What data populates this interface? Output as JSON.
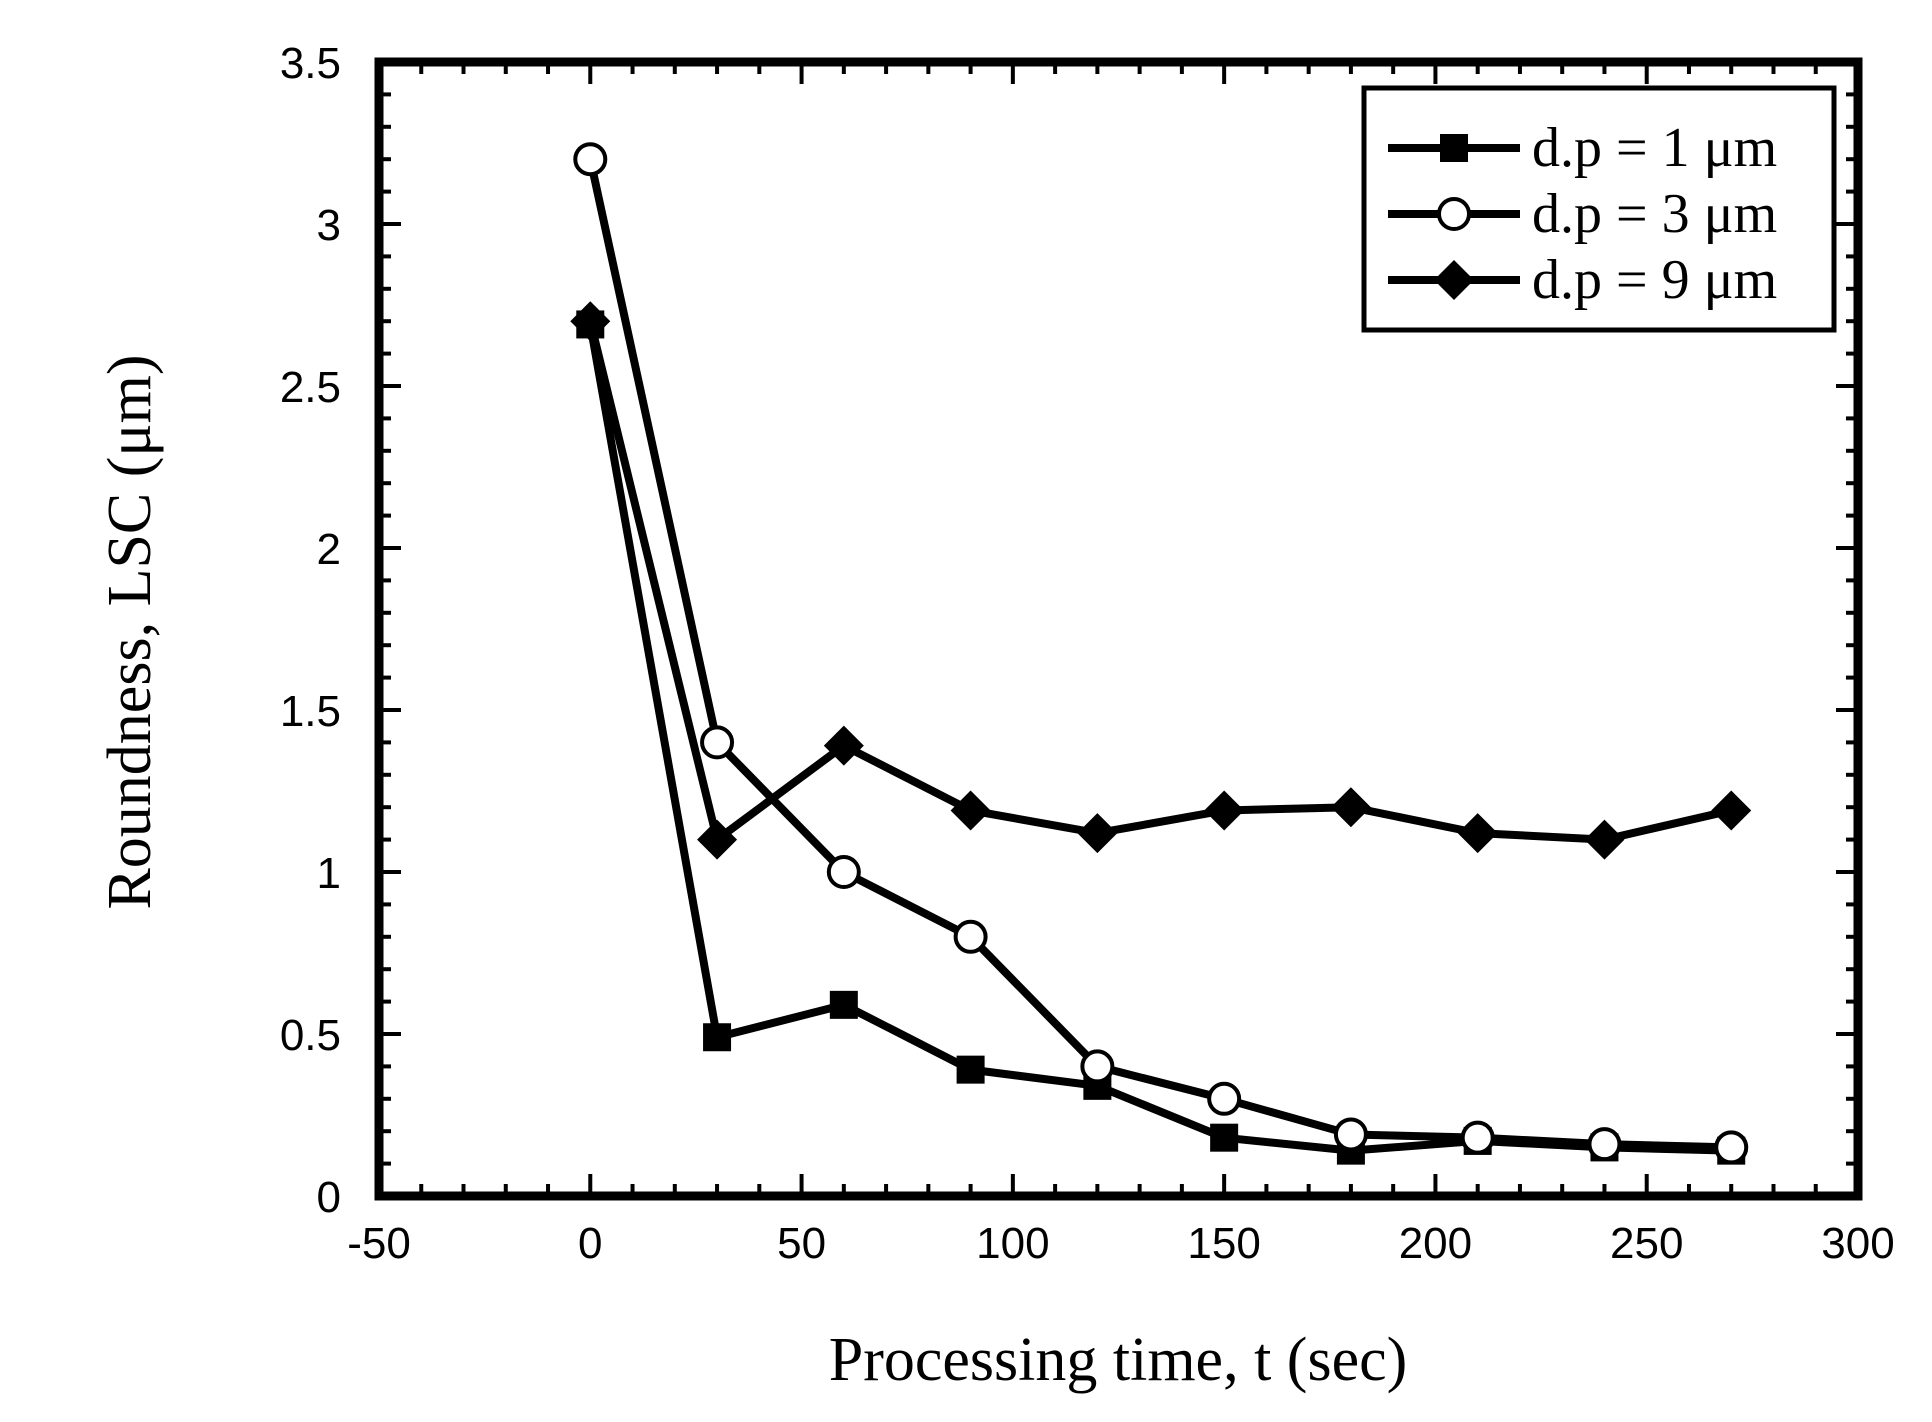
{
  "chart_data": {
    "type": "line",
    "title": "",
    "xlabel": "Processing time, t (sec)",
    "ylabel": "Roundness, LSC (μm)",
    "xlim": [
      -50,
      300
    ],
    "ylim": [
      0,
      3.5
    ],
    "x_ticks": [
      -50,
      0,
      50,
      100,
      150,
      200,
      250,
      300
    ],
    "x_tick_labels": [
      "-50",
      "0",
      "50",
      "100",
      "150",
      "200",
      "250",
      "300"
    ],
    "y_ticks": [
      0,
      0.5,
      1,
      1.5,
      2,
      2.5,
      3,
      3.5
    ],
    "y_tick_labels": [
      "0",
      "0.5",
      "1",
      "1.5",
      "2",
      "2.5",
      "3",
      "3.5"
    ],
    "grid": false,
    "legend_position": "top-right",
    "x": [
      0,
      30,
      60,
      90,
      120,
      150,
      180,
      210,
      240,
      270
    ],
    "series": [
      {
        "name": "d.p = 1 μm",
        "marker": "square-filled",
        "values": [
          2.69,
          0.49,
          0.59,
          0.39,
          0.34,
          0.18,
          0.14,
          0.17,
          0.15,
          0.14
        ]
      },
      {
        "name": "d.p = 3 μm",
        "marker": "circle-open",
        "values": [
          3.2,
          1.4,
          1.0,
          0.8,
          0.4,
          0.3,
          0.19,
          0.18,
          0.16,
          0.15
        ]
      },
      {
        "name": "d.p = 9 μm",
        "marker": "diamond-filled",
        "values": [
          2.7,
          1.1,
          1.39,
          1.19,
          1.12,
          1.19,
          1.2,
          1.12,
          1.1,
          1.19
        ]
      }
    ],
    "colors": {
      "line": "#000000",
      "background": "#ffffff"
    }
  }
}
